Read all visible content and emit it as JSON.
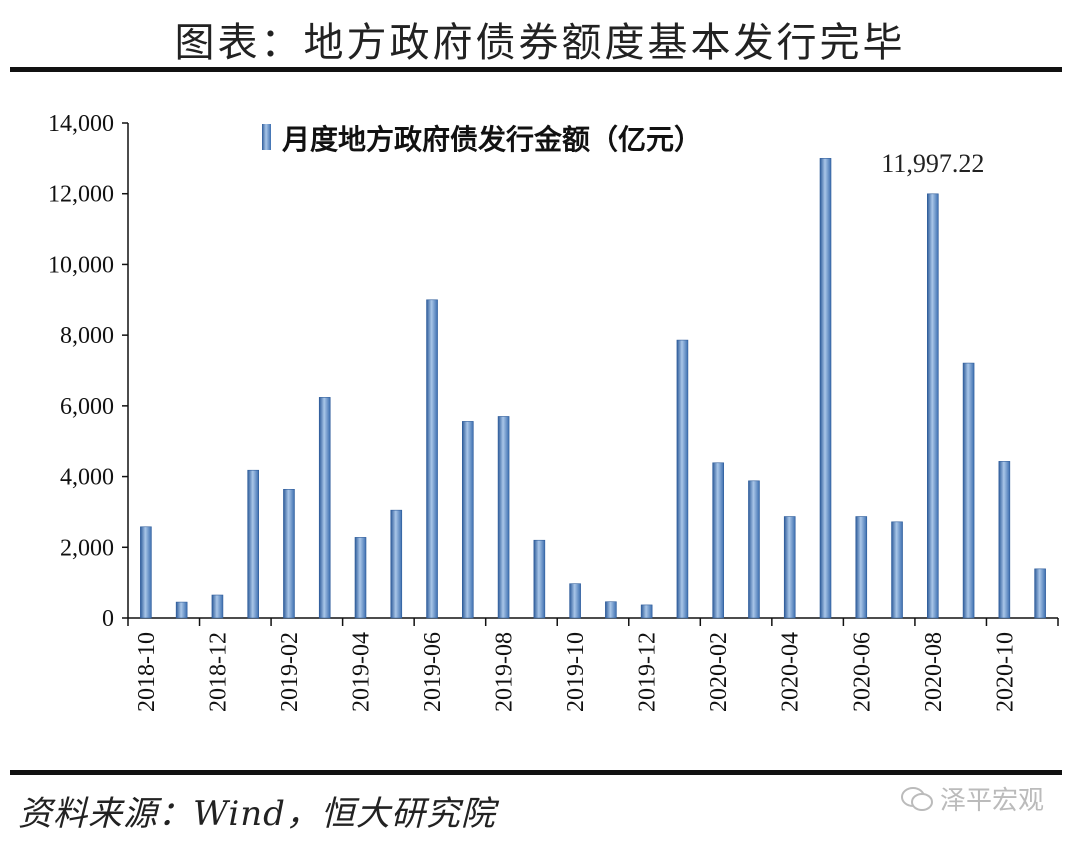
{
  "header": {
    "title": "图表：地方政府债券额度基本发行完毕"
  },
  "footer": {
    "source": "资料来源：Wind，恒大研究院",
    "watermark": "泽平宏观"
  },
  "colors": {
    "bar_light": "#a9c6e8",
    "bar_mid": "#5b8fd0",
    "bar_dark": "#2e5c9a",
    "axis": "#111111"
  },
  "chart_data": {
    "type": "bar",
    "legend": "月度地方政府债发行金额（亿元）",
    "categories": [
      "2018-10",
      "2018-11",
      "2018-12",
      "2019-01",
      "2019-02",
      "2019-03",
      "2019-04",
      "2019-05",
      "2019-06",
      "2019-07",
      "2019-08",
      "2019-09",
      "2019-10",
      "2019-11",
      "2019-12",
      "2020-01",
      "2020-02",
      "2020-03",
      "2020-04",
      "2020-05",
      "2020-06",
      "2020-07",
      "2020-08",
      "2020-09",
      "2020-10",
      "2020-11"
    ],
    "values": [
      2580,
      450,
      650,
      4180,
      3640,
      6240,
      2280,
      3050,
      9000,
      5560,
      5700,
      2200,
      970,
      460,
      370,
      7860,
      4390,
      3880,
      2870,
      13000,
      2870,
      2720,
      11997.22,
      7210,
      4430,
      1390
    ],
    "xtick_labels": [
      "2018-10",
      "2018-12",
      "2019-02",
      "2019-04",
      "2019-06",
      "2019-08",
      "2019-10",
      "2019-12",
      "2020-02",
      "2020-04",
      "2020-06",
      "2020-08",
      "2020-10"
    ],
    "yticks": [
      "0",
      "2,000",
      "4,000",
      "6,000",
      "8,000",
      "10,000",
      "12,000",
      "14,000"
    ],
    "ylim": [
      0,
      14000
    ],
    "annotation": {
      "category": "2020-08",
      "text": "11,997.22"
    },
    "legend_position": "top"
  }
}
